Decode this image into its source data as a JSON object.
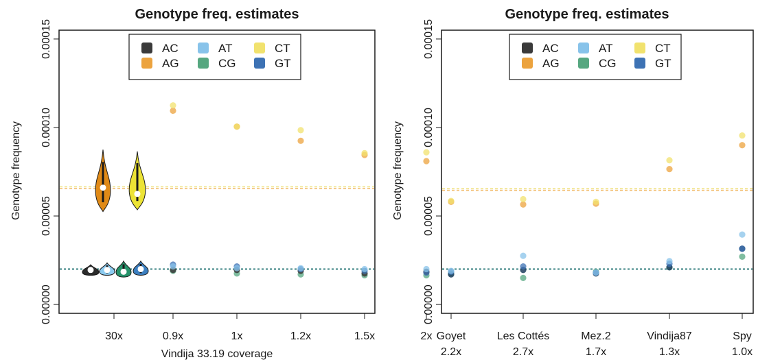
{
  "chart_data": [
    {
      "type": "scatter",
      "title": "Genotype freq. estimates",
      "xlabel": "Vindija 33.19 coverage",
      "ylabel": "Genotype frequency",
      "ylim": [
        -5e-06,
        0.000155
      ],
      "yticks": [
        "0.00000",
        "0.00005",
        "0.00010",
        "0.00015"
      ],
      "ytick_values": [
        0,
        5e-05,
        0.0001,
        0.00015
      ],
      "categories": [
        "30x",
        "0.9x",
        "1x",
        "1.2x",
        "1.5x",
        "2x"
      ],
      "grid": false,
      "legend_position": "top-center",
      "reference_lines": [
        {
          "series": "AG",
          "y": 6.55e-05
        },
        {
          "series": "CT",
          "y": 6.65e-05
        },
        {
          "series": "transversions",
          "y": 2e-05
        }
      ],
      "violins_30x": [
        {
          "series": "AC",
          "min": 1.65e-05,
          "max": 2.25e-05,
          "median": 1.95e-05
        },
        {
          "series": "AG",
          "min": 5.25e-05,
          "max": 8.75e-05,
          "median": 6.6e-05
        },
        {
          "series": "AT",
          "min": 1.65e-05,
          "max": 2.35e-05,
          "median": 1.95e-05
        },
        {
          "series": "CG",
          "min": 1.55e-05,
          "max": 2.45e-05,
          "median": 1.85e-05
        },
        {
          "series": "CT",
          "min": 5.35e-05,
          "max": 8.65e-05,
          "median": 6.25e-05
        },
        {
          "series": "GT",
          "min": 1.65e-05,
          "max": 2.45e-05,
          "median": 2e-05
        }
      ],
      "series": [
        {
          "name": "AC",
          "values": [
            null,
            1.95e-05,
            1.95e-05,
            1.9e-05,
            1.75e-05,
            1.85e-05
          ]
        },
        {
          "name": "AG",
          "values": [
            null,
            0.0001095,
            0.0001005,
            9.25e-05,
            8.45e-05,
            8.1e-05
          ]
        },
        {
          "name": "AT",
          "values": [
            null,
            2.15e-05,
            2.05e-05,
            2.05e-05,
            2e-05,
            2e-05
          ]
        },
        {
          "name": "CG",
          "values": [
            null,
            1.9e-05,
            1.75e-05,
            1.7e-05,
            1.65e-05,
            1.65e-05
          ]
        },
        {
          "name": "CT",
          "values": [
            null,
            0.0001125,
            0.0001005,
            9.85e-05,
            8.55e-05,
            8.6e-05
          ]
        },
        {
          "name": "GT",
          "values": [
            null,
            2.25e-05,
            2.15e-05,
            2e-05,
            1.9e-05,
            1.8e-05
          ]
        }
      ]
    },
    {
      "type": "scatter",
      "title": "Genotype freq. estimates",
      "xlabel": "",
      "ylabel": "Genotype frequency",
      "ylim": [
        -5e-06,
        0.000155
      ],
      "yticks": [
        "0.00000",
        "0.00005",
        "0.00010",
        "0.00015"
      ],
      "ytick_values": [
        0,
        5e-05,
        0.0001,
        0.00015
      ],
      "categories": [
        "Goyet",
        "Les Cottés",
        "Mez.2",
        "Vindija87",
        "Spy"
      ],
      "category_sublabels": [
        "2.2x",
        "2.7x",
        "1.7x",
        "1.3x",
        "1.0x"
      ],
      "grid": false,
      "legend_position": "top-center",
      "reference_lines": [
        {
          "series": "AG",
          "y": 6.45e-05
        },
        {
          "series": "CT",
          "y": 6.55e-05
        },
        {
          "series": "transversions",
          "y": 2e-05
        }
      ],
      "series": [
        {
          "name": "AC",
          "values": [
            1.7e-05,
            1.95e-05,
            1.75e-05,
            2.1e-05,
            3.15e-05
          ]
        },
        {
          "name": "AG",
          "values": [
            5.8e-05,
            5.65e-05,
            5.7e-05,
            7.65e-05,
            9e-05
          ]
        },
        {
          "name": "AT",
          "values": [
            1.9e-05,
            2.75e-05,
            1.8e-05,
            2.45e-05,
            3.95e-05
          ]
        },
        {
          "name": "CG",
          "values": [
            1.75e-05,
            1.5e-05,
            1.85e-05,
            2.1e-05,
            2.7e-05
          ]
        },
        {
          "name": "CT",
          "values": [
            5.85e-05,
            5.95e-05,
            5.8e-05,
            8.15e-05,
            9.55e-05
          ]
        },
        {
          "name": "GT",
          "values": [
            1.85e-05,
            2.15e-05,
            1.8e-05,
            2.3e-05,
            3.15e-05
          ]
        }
      ]
    }
  ],
  "legend": [
    {
      "name": "AC",
      "color": "#3a3a3a"
    },
    {
      "name": "AT",
      "color": "#88c3ea"
    },
    {
      "name": "CT",
      "color": "#f1e26e"
    },
    {
      "name": "AG",
      "color": "#eca33e"
    },
    {
      "name": "CG",
      "color": "#56a780"
    },
    {
      "name": "GT",
      "color": "#3d72b4"
    }
  ],
  "colors": {
    "AC": "#3a3a3a",
    "AG": "#eca33e",
    "AT": "#88c3ea",
    "CG": "#56a780",
    "CT": "#f1e26e",
    "GT": "#3d72b4",
    "AC_right": "#1f3e5e",
    "violin_AG": "#e08a17",
    "violin_CT": "#ece335",
    "violin_AT": "#8ccbf0",
    "violin_CG": "#27936b",
    "violin_GT": "#3c7fc0"
  }
}
